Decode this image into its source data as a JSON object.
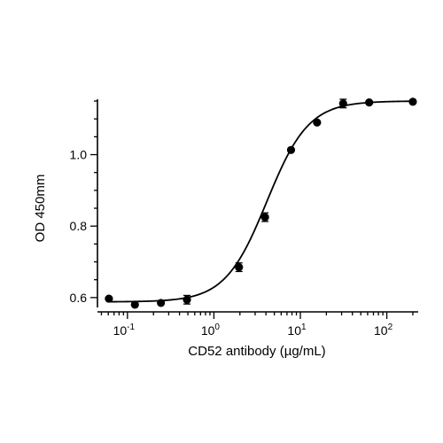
{
  "chart_data": {
    "type": "scatter",
    "title": "",
    "xlabel": "CD52 antibody (µg/mL)",
    "ylabel": "OD 450mm",
    "xscale": "log",
    "xlim": [
      0.045,
      220
    ],
    "ylim": [
      0.56,
      1.16
    ],
    "grid": false,
    "legend": "none",
    "x_ticks": [
      {
        "value": 0.1,
        "base": "10",
        "exp": "-1"
      },
      {
        "value": 1,
        "base": "10",
        "exp": "0"
      },
      {
        "value": 10,
        "base": "10",
        "exp": "1"
      },
      {
        "value": 100,
        "base": "10",
        "exp": "2"
      }
    ],
    "y_ticks": [
      {
        "value": 0.6,
        "label": "0.6"
      },
      {
        "value": 0.8,
        "label": "0.8"
      },
      {
        "value": 1.0,
        "label": "1.0"
      }
    ],
    "series": [
      {
        "x": [
          0.061,
          0.122,
          0.244,
          0.488,
          1.95,
          3.9,
          7.8,
          15.6,
          31.25,
          62.5,
          200
        ],
        "y": [
          0.597,
          0.58,
          0.585,
          0.594,
          0.685,
          0.825,
          1.013,
          1.09,
          1.143,
          1.146,
          1.148
        ],
        "error": [
          0,
          0,
          0,
          0.012,
          0.012,
          0.012,
          0,
          0,
          0.012,
          0,
          0
        ],
        "fit": {
          "model": "4PL",
          "bottom": 0.588,
          "top": 1.15,
          "ec50": 4.1,
          "hill": 1.8
        }
      }
    ],
    "colors": {
      "marker": "#000000",
      "line": "#000000",
      "axis": "#000000"
    }
  }
}
